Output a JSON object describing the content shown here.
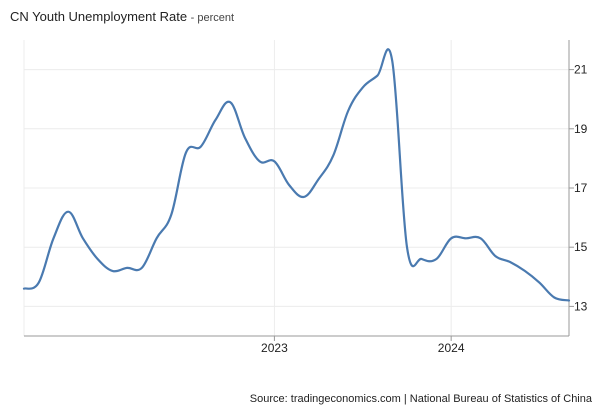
{
  "header": {
    "title": "CN Youth Unemployment Rate",
    "subtitle": "- percent"
  },
  "footer": {
    "source": "Source: tradingeconomics.com | National Bureau of Statistics of China"
  },
  "chart_data": {
    "type": "line",
    "title": "CN Youth Unemployment Rate",
    "subtitle": "percent",
    "xlabel": "",
    "ylabel": "",
    "x_ticks": [
      "2023",
      "2024"
    ],
    "y_ticks": [
      13,
      15,
      17,
      19,
      21
    ],
    "ylim": [
      12,
      22
    ],
    "xlim": [
      "2021-08",
      "2024-09"
    ],
    "grid": true,
    "y_axis_side": "right",
    "line_color": "#4a7ab0",
    "series": [
      {
        "x": [
          "2021-08",
          "2021-09",
          "2021-10",
          "2021-11",
          "2021-12",
          "2022-01",
          "2022-02",
          "2022-03",
          "2022-04",
          "2022-05",
          "2022-06",
          "2022-07",
          "2022-08",
          "2022-09",
          "2022-10",
          "2022-11",
          "2022-12",
          "2023-01",
          "2023-02",
          "2023-03",
          "2023-04",
          "2023-05",
          "2023-06",
          "2023-07",
          "2023-08",
          "2023-09",
          "2023-10",
          "2023-11",
          "2023-12",
          "2024-01",
          "2024-02",
          "2024-03",
          "2024-04",
          "2024-05",
          "2024-06",
          "2024-07",
          "2024-08",
          "2024-09"
        ],
        "values": [
          13.6,
          13.8,
          15.3,
          16.2,
          15.3,
          14.6,
          14.2,
          14.3,
          14.3,
          15.3,
          16.1,
          18.2,
          18.4,
          19.3,
          19.9,
          18.7,
          17.9,
          17.9,
          17.1,
          16.7,
          17.3,
          18.1,
          19.6,
          20.4,
          20.8,
          21.3,
          15.0,
          14.6,
          14.6,
          15.3,
          15.3,
          15.3,
          14.7,
          14.5,
          14.2,
          13.8,
          13.3,
          13.2
        ]
      }
    ]
  }
}
